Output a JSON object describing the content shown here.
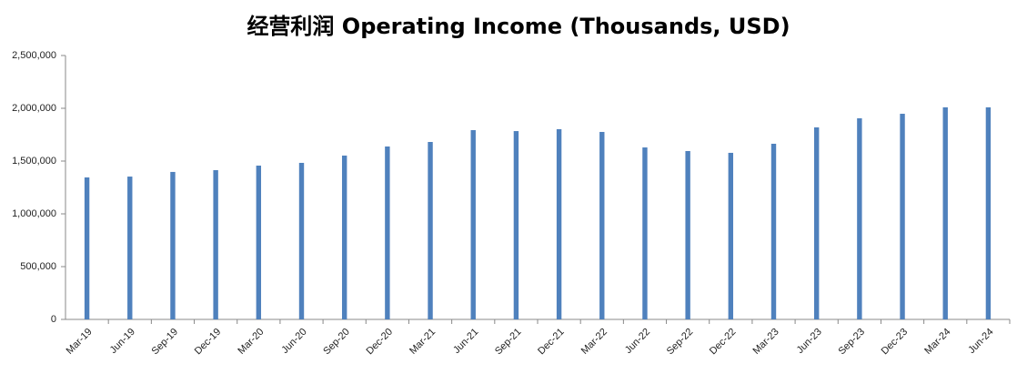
{
  "chart_data": {
    "type": "bar",
    "title": "经营利润 Operating Income (Thousands, USD)",
    "categories": [
      "Mar-19",
      "Jun-19",
      "Sep-19",
      "Dec-19",
      "Mar-20",
      "Jun-20",
      "Sep-20",
      "Dec-20",
      "Mar-21",
      "Jun-21",
      "Sep-21",
      "Dec-21",
      "Mar-22",
      "Jun-22",
      "Sep-22",
      "Dec-22",
      "Mar-23",
      "Jun-23",
      "Sep-23",
      "Dec-23",
      "Mar-24",
      "Jun-24"
    ],
    "values": [
      1345000,
      1353000,
      1397000,
      1414000,
      1457000,
      1483000,
      1552000,
      1638000,
      1681000,
      1793000,
      1784000,
      1802000,
      1776000,
      1629000,
      1595000,
      1578000,
      1664000,
      1819000,
      1905000,
      1948000,
      2009000,
      2009000
    ],
    "color": "#4f81bd",
    "ylim": [
      0,
      2500000
    ],
    "yticks": [
      0,
      {
        "value": 500000,
        "label": "500,000"
      },
      {
        "value": 1000000,
        "label": "1,000,000"
      },
      {
        "value": 1500000,
        "label": "1,500,000"
      },
      {
        "value": 2000000,
        "label": "2,000,000"
      },
      {
        "value": 2500000,
        "label": "2,500,000"
      }
    ],
    "grid": false
  }
}
